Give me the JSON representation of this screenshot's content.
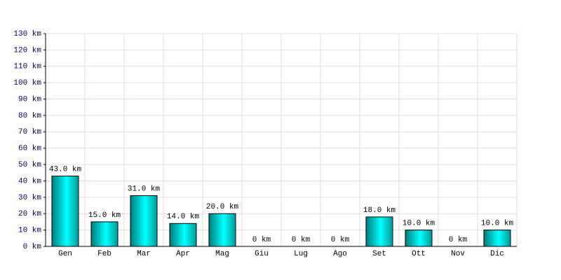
{
  "chart_data": {
    "type": "bar",
    "categories": [
      "Gen",
      "Feb",
      "Mar",
      "Apr",
      "Mag",
      "Giu",
      "Lug",
      "Ago",
      "Set",
      "Ott",
      "Nov",
      "Dic"
    ],
    "values": [
      43,
      15,
      31,
      14,
      20,
      0,
      0,
      0,
      18,
      10,
      0,
      10
    ],
    "value_labels": [
      "43.0 km",
      "15.0 km",
      "31.0 km",
      "14.0 km",
      "20.0 km",
      "0 km",
      "0 km",
      "0 km",
      "18.0 km",
      "10.0 km",
      "0 km",
      "10.0 km"
    ],
    "color": "#00d8d8",
    "ylim": [
      0,
      130
    ],
    "yticks": [
      {
        "value": 0,
        "label": "0 km"
      },
      {
        "value": 10,
        "label": "10 km"
      },
      {
        "value": 20,
        "label": "20 km"
      },
      {
        "value": 30,
        "label": "30 km"
      },
      {
        "value": 40,
        "label": "40 km"
      },
      {
        "value": 50,
        "label": "50 km"
      },
      {
        "value": 60,
        "label": "60 km"
      },
      {
        "value": 70,
        "label": "70 km"
      },
      {
        "value": 80,
        "label": "80 km"
      },
      {
        "value": 90,
        "label": "90 km"
      },
      {
        "value": 100,
        "label": "100 km"
      },
      {
        "value": 110,
        "label": "110 km"
      },
      {
        "value": 120,
        "label": "120 km"
      },
      {
        "value": 130,
        "label": "130 km"
      }
    ],
    "grid": true
  }
}
